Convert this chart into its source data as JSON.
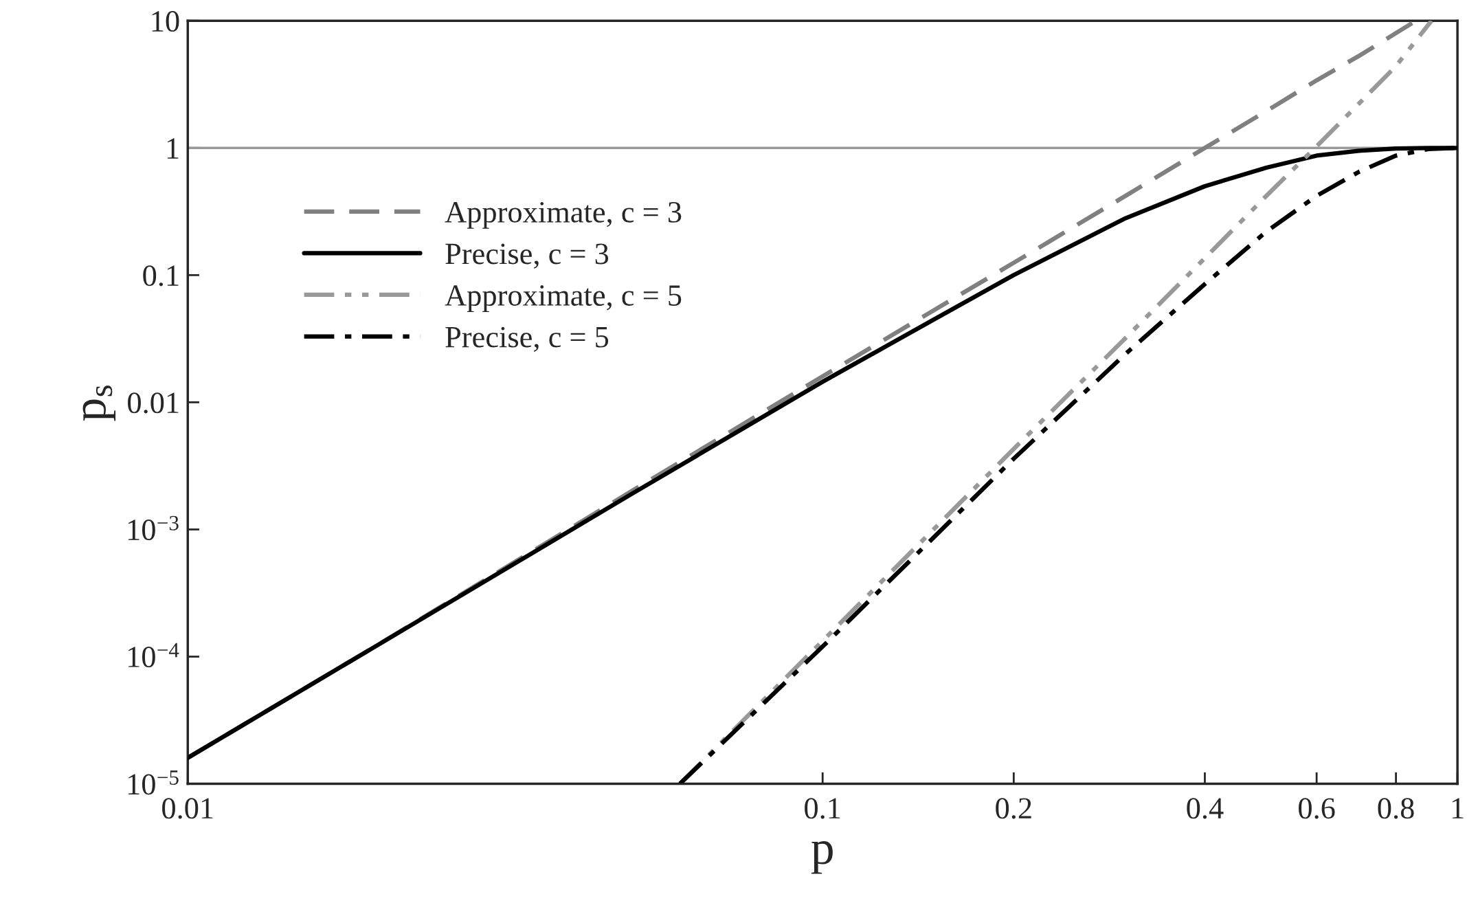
{
  "chart_data": {
    "type": "line",
    "xlabel": "p",
    "ylabel": "p$_{s}$",
    "log": "xy",
    "grid": false,
    "legend": "top left",
    "marker": "none",
    "xlim": [
      0.01,
      1
    ],
    "ylim": [
      1e-05,
      10
    ],
    "xticks": [
      0.01,
      0.1,
      0.2,
      0.4,
      0.6,
      0.8,
      1
    ],
    "yticks": [
      {
        "value": 1e-05,
        "label": "10$^{−5}$"
      },
      {
        "value": 0.0001,
        "label": "10$^{−4}$"
      },
      {
        "value": 0.001,
        "label": "10$^{−3}$"
      },
      0.01,
      0.1,
      1,
      10
    ],
    "ref_lines": [
      {
        "axis": "y",
        "value": 1,
        "color": "#999999",
        "line_style": "solid"
      }
    ],
    "series": [
      {
        "name": "Approximate, c = 3",
        "color": "#808080",
        "line_style": "dashed",
        "x": [
          0.01,
          0.02,
          0.05,
          0.1,
          0.2,
          0.3,
          0.4,
          0.5,
          0.6,
          0.7,
          0.8,
          0.86
        ],
        "values": [
          1.6e-05,
          0.000125,
          0.002,
          0.016,
          0.125,
          0.42,
          1.0,
          1.95,
          3.4,
          5.3,
          8.0,
          10
        ]
      },
      {
        "name": "Precise, c = 3",
        "color": "#000000",
        "line_style": "solid",
        "x": [
          0.01,
          0.02,
          0.05,
          0.1,
          0.15,
          0.2,
          0.3,
          0.4,
          0.5,
          0.6,
          0.7,
          0.8,
          0.9,
          1.0
        ],
        "values": [
          1.6e-05,
          0.000125,
          0.0019,
          0.0145,
          0.045,
          0.1,
          0.28,
          0.5,
          0.7,
          0.87,
          0.95,
          0.99,
          1.0,
          1.0
        ]
      },
      {
        "name": "Approximate, c = 5",
        "color": "#999999",
        "line_style": "dashdotdot",
        "x": [
          0.0596,
          0.1,
          0.2,
          0.3,
          0.4,
          0.5,
          0.6,
          0.7,
          0.8,
          0.91
        ],
        "values": [
          1e-05,
          0.000133,
          0.0043,
          0.032,
          0.136,
          0.42,
          1.03,
          2.24,
          4.4,
          10
        ]
      },
      {
        "name": "Precise, c = 5",
        "color": "#000000",
        "line_style": "dashdot",
        "x": [
          0.0596,
          0.1,
          0.2,
          0.3,
          0.4,
          0.5,
          0.6,
          0.7,
          0.8,
          0.9,
          1.0
        ],
        "values": [
          1e-05,
          0.00012,
          0.0036,
          0.024,
          0.085,
          0.22,
          0.42,
          0.65,
          0.87,
          0.98,
          1.0
        ]
      }
    ]
  }
}
